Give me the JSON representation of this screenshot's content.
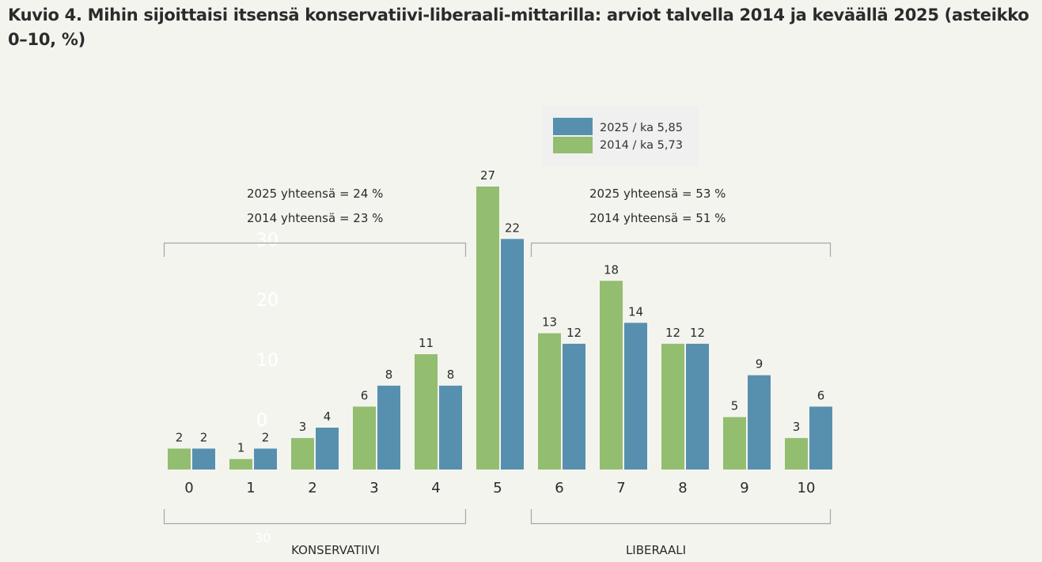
{
  "title": "Kuvio 4. Mihin sijoittaisi itsensä konservatiivi-liberaali-mittarilla: arviot talvella 2014 ja keväällä 2025 (asteikko 0–10, %)",
  "chart_data": {
    "type": "bar",
    "title": "Kuvio 4. Mihin sijoittaisi itsensä konservatiivi-liberaali-mittarilla: arviot talvella 2014 ja keväällä 2025 (asteikko 0–10, %)",
    "xlabel": "",
    "ylabel": "%",
    "ylim": [
      0,
      30
    ],
    "grid": false,
    "categories": [
      "0",
      "1",
      "2",
      "3",
      "4",
      "5",
      "6",
      "7",
      "8",
      "9",
      "10"
    ],
    "series": [
      {
        "name": "2014 / ka 5,73",
        "color": "#93bd6f",
        "values": [
          2,
          1,
          3,
          6,
          11,
          27,
          13,
          18,
          12,
          5,
          3
        ]
      },
      {
        "name": "2025 / ka 5,85",
        "color": "#5790ae",
        "values": [
          2,
          2,
          4,
          8,
          8,
          22,
          12,
          14,
          12,
          9,
          6
        ]
      }
    ],
    "legend": {
      "placement": "top-right",
      "entries": [
        {
          "label": "2025 / ka 5,85",
          "color": "#5790ae"
        },
        {
          "label": "2014 / ka 5,73",
          "color": "#93bd6f"
        }
      ]
    },
    "annotations": {
      "conservative": {
        "group_label": "KONSERVATIIVI",
        "range": [
          "0",
          "4"
        ],
        "totals": [
          "2025 yhteensä = 24 %",
          "2014 yhteensä = 23 %"
        ]
      },
      "liberal": {
        "group_label": "LIBERAALI",
        "range": [
          "6",
          "10"
        ],
        "totals": [
          "2025 yhteensä = 53 %",
          "2014 yhteensä = 51 %"
        ]
      }
    },
    "ghost_axis_ticks": [
      "30",
      "20",
      "10",
      "0"
    ],
    "ghost_bottom_label": "30"
  }
}
